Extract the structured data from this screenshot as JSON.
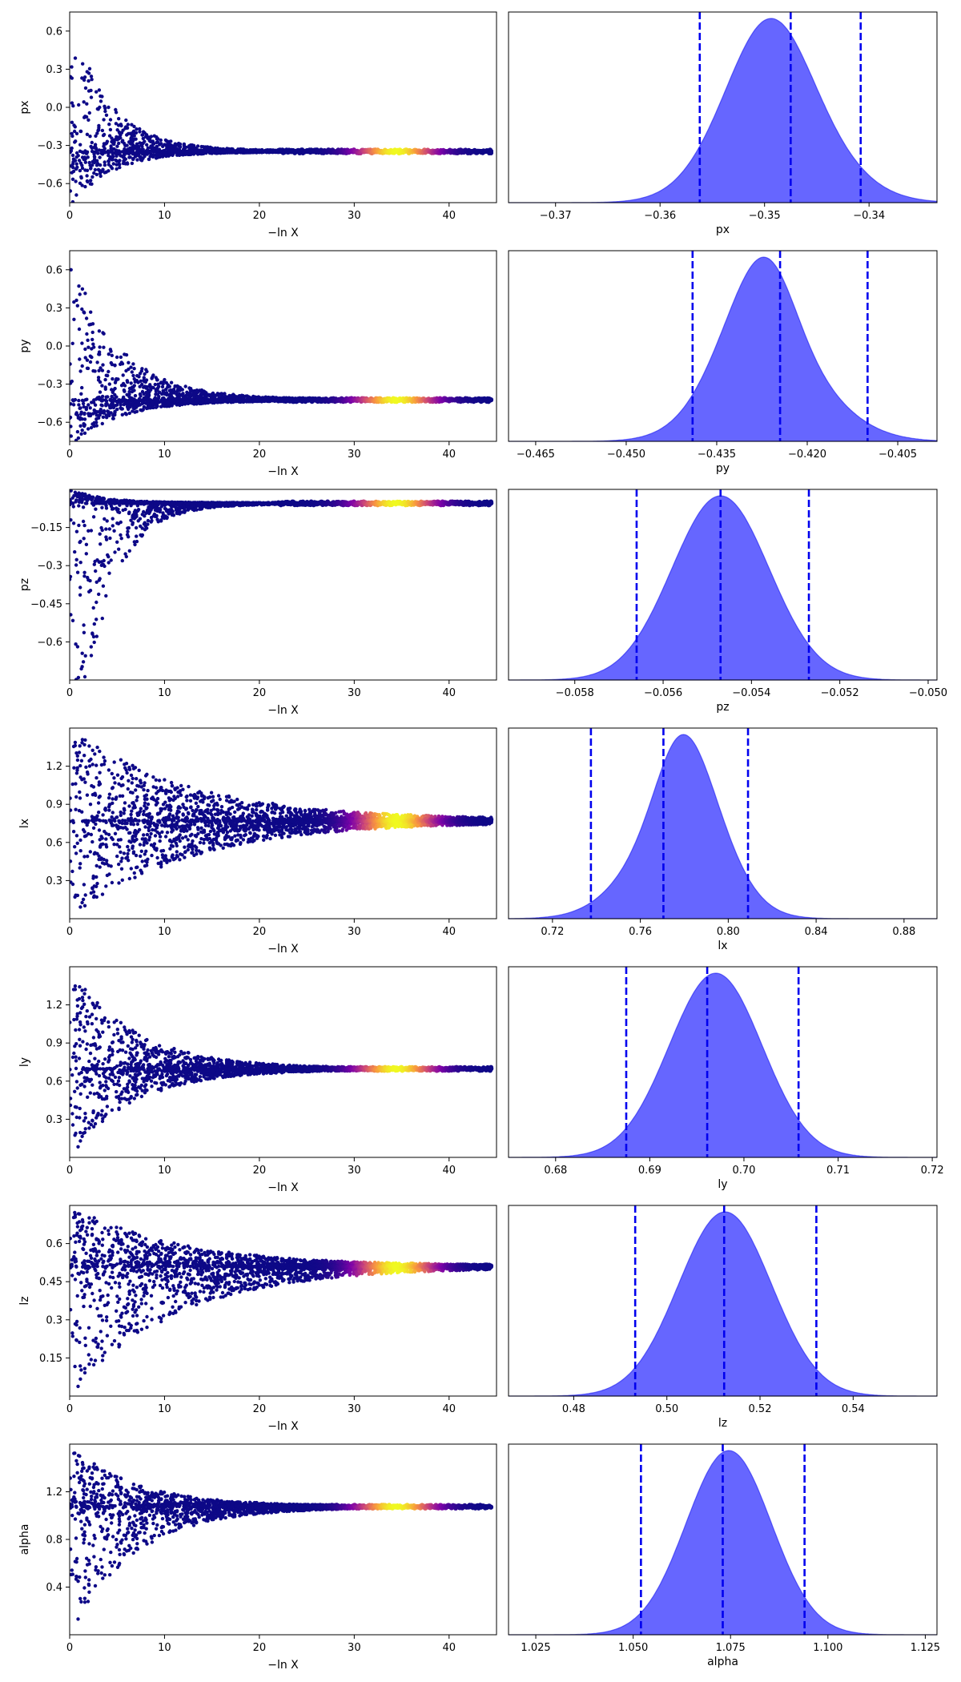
{
  "chart_data": [
    {
      "panel": "trace",
      "type": "scatter",
      "ylabel": "px",
      "xlabel": "−ln X",
      "xlim": [
        0,
        45
      ],
      "xticks": [
        0,
        10,
        20,
        30,
        40
      ],
      "ylim": [
        -0.75,
        0.75
      ],
      "yticks": [
        0.6,
        0.3,
        0.0,
        -0.3,
        -0.6
      ],
      "converged_value": -0.347,
      "band_start": 0.7,
      "band_start_x": 0.5,
      "band_x_end": 14,
      "band_floor": -0.75,
      "band_ceil": 0.75,
      "decay": 0.25,
      "colormap": [
        "#0d0887",
        "#7e03a8",
        "#cc4778",
        "#f89540",
        "#f0f921"
      ]
    },
    {
      "panel": "trace",
      "type": "scatter",
      "ylabel": "py",
      "xlabel": "−ln X",
      "xlim": [
        0,
        45
      ],
      "xticks": [
        0,
        10,
        20,
        30,
        40
      ],
      "ylim": [
        -0.75,
        0.75
      ],
      "yticks": [
        0.6,
        0.3,
        0.0,
        -0.3,
        -0.6
      ],
      "converged_value": -0.425,
      "band_start": 0.75,
      "band_start_x": 0.5,
      "band_x_end": 23,
      "band_floor": -0.75,
      "band_ceil": 0.75,
      "decay": 0.2,
      "colormap": [
        "#0d0887",
        "#7e03a8",
        "#cc4778",
        "#f89540",
        "#f0f921"
      ]
    },
    {
      "panel": "trace",
      "type": "scatter",
      "ylabel": "pz",
      "xlabel": "−ln X",
      "xlim": [
        0,
        45
      ],
      "xticks": [
        0,
        10,
        20,
        30,
        40
      ],
      "ylim": [
        -0.75,
        0.0
      ],
      "yticks": [
        -0.15,
        -0.3,
        -0.45,
        -0.6
      ],
      "converged_value": -0.055,
      "band_start": -0.75,
      "band_start_x": 2,
      "band_x_end": 14,
      "band_floor": -0.75,
      "band_ceil": 0.0,
      "decay": 0.3,
      "colormap": [
        "#0d0887",
        "#7e03a8",
        "#cc4778",
        "#f89540",
        "#f0f921"
      ]
    },
    {
      "panel": "trace",
      "type": "scatter",
      "ylabel": "lx",
      "xlabel": "−ln X",
      "xlim": [
        0,
        45
      ],
      "xticks": [
        0,
        10,
        20,
        30,
        40
      ],
      "ylim": [
        0.0,
        1.5
      ],
      "yticks": [
        1.2,
        0.9,
        0.6,
        0.3
      ],
      "converged_value": 0.77,
      "band_start": 0.0,
      "band_start_x": 0,
      "band_x_end": 28,
      "band_floor": 0.0,
      "band_ceil": 1.5,
      "decay": 0.08,
      "colormap": [
        "#0d0887",
        "#7e03a8",
        "#cc4778",
        "#f89540",
        "#f0f921"
      ]
    },
    {
      "panel": "trace",
      "type": "scatter",
      "ylabel": "ly",
      "xlabel": "−ln X",
      "xlim": [
        0,
        45
      ],
      "xticks": [
        0,
        10,
        20,
        30,
        40
      ],
      "ylim": [
        0.0,
        1.5
      ],
      "yticks": [
        1.2,
        0.9,
        0.6,
        0.3
      ],
      "converged_value": 0.696,
      "band_start": 0.0,
      "band_start_x": 0,
      "band_x_end": 17,
      "band_floor": 0.0,
      "band_ceil": 1.5,
      "decay": 0.15,
      "colormap": [
        "#0d0887",
        "#7e03a8",
        "#cc4778",
        "#f89540",
        "#f0f921"
      ]
    },
    {
      "panel": "trace",
      "type": "scatter",
      "ylabel": "lz",
      "xlabel": "−ln X",
      "xlim": [
        0,
        45
      ],
      "xticks": [
        0,
        10,
        20,
        30,
        40
      ],
      "ylim": [
        0.0,
        0.75
      ],
      "yticks": [
        0.6,
        0.45,
        0.3,
        0.15
      ],
      "converged_value": 0.51,
      "band_start": 0.0,
      "band_start_x": 0,
      "band_x_end": 19,
      "band_floor": 0.0,
      "band_ceil": 0.75,
      "decay": 0.09,
      "colormap": [
        "#0d0887",
        "#7e03a8",
        "#cc4778",
        "#f89540",
        "#f0f921"
      ]
    },
    {
      "panel": "trace",
      "type": "scatter",
      "ylabel": "alpha",
      "xlabel": "−ln X",
      "xlim": [
        0,
        45
      ],
      "xticks": [
        0,
        10,
        20,
        30,
        40
      ],
      "ylim": [
        0.0,
        1.6
      ],
      "yticks": [
        1.2,
        0.8,
        0.4
      ],
      "converged_value": 1.075,
      "band_start": 0.0,
      "band_start_x": 0,
      "band_x_end": 16,
      "band_floor": 0.0,
      "band_ceil": 1.6,
      "decay": 0.15,
      "colormap": [
        "#0d0887",
        "#7e03a8",
        "#cc4778",
        "#f89540",
        "#f0f921"
      ]
    },
    {
      "panel": "posterior",
      "type": "area",
      "xlabel": "px",
      "xlim": [
        -0.3745,
        -0.3335
      ],
      "xticks": [
        -0.37,
        -0.36,
        -0.35,
        -0.34
      ],
      "xtick_labels": [
        "−0.37",
        "−0.36",
        "−0.35",
        "−0.34"
      ],
      "mean": -0.3475,
      "sd": 0.005,
      "skew": -1.0,
      "quantiles": [
        -0.3562,
        -0.3475,
        -0.3408
      ],
      "fill_color": "#6666ff",
      "line_color": "#0000ee"
    },
    {
      "panel": "posterior",
      "type": "area",
      "xlabel": "py",
      "xlim": [
        -0.4695,
        -0.3985
      ],
      "xticks": [
        -0.465,
        -0.45,
        -0.435,
        -0.42,
        -0.405
      ],
      "xtick_labels": [
        "−0.465",
        "−0.450",
        "−0.435",
        "−0.420",
        "−0.405"
      ],
      "mean": -0.4235,
      "sd": 0.0085,
      "skew": -1.6,
      "quantiles": [
        -0.439,
        -0.4245,
        -0.41
      ],
      "fill_color": "#6666ff",
      "line_color": "#0000ee"
    },
    {
      "panel": "posterior",
      "type": "area",
      "xlabel": "pz",
      "xlim": [
        -0.0595,
        -0.0498
      ],
      "xticks": [
        -0.058,
        -0.056,
        -0.054,
        -0.052,
        -0.05
      ],
      "xtick_labels": [
        "−0.058",
        "−0.056",
        "−0.054",
        "−0.052",
        "−0.050"
      ],
      "mean": -0.0547,
      "sd": 0.0011,
      "skew": 0.0,
      "quantiles": [
        -0.0566,
        -0.0547,
        -0.0527
      ],
      "fill_color": "#6666ff",
      "line_color": "#0000ee"
    },
    {
      "panel": "posterior",
      "type": "area",
      "xlabel": "lx",
      "xlim": [
        0.7,
        0.895
      ],
      "xticks": [
        0.72,
        0.76,
        0.8,
        0.84,
        0.88
      ],
      "xtick_labels": [
        "0.72",
        "0.76",
        "0.80",
        "0.84",
        "0.88"
      ],
      "mean": 0.771,
      "sd": 0.02,
      "skew": 1.5,
      "quantiles": [
        0.7375,
        0.7705,
        0.809
      ],
      "fill_color": "#6666ff",
      "line_color": "#0000ee"
    },
    {
      "panel": "posterior",
      "type": "area",
      "xlabel": "ly",
      "xlim": [
        0.675,
        0.7205
      ],
      "xticks": [
        0.68,
        0.69,
        0.7,
        0.71,
        0.72
      ],
      "xtick_labels": [
        "0.68",
        "0.69",
        "0.70",
        "0.71",
        "0.72"
      ],
      "mean": 0.6963,
      "sd": 0.005,
      "skew": 0.3,
      "quantiles": [
        0.6875,
        0.6961,
        0.7058
      ],
      "fill_color": "#6666ff",
      "line_color": "#0000ee"
    },
    {
      "panel": "posterior",
      "type": "area",
      "xlabel": "lz",
      "xlim": [
        0.466,
        0.558
      ],
      "xticks": [
        0.48,
        0.5,
        0.52,
        0.54
      ],
      "xtick_labels": [
        "0.48",
        "0.50",
        "0.52",
        "0.54"
      ],
      "mean": 0.5125,
      "sd": 0.01,
      "skew": 0.0,
      "quantiles": [
        0.4932,
        0.5123,
        0.5321
      ],
      "fill_color": "#6666ff",
      "line_color": "#0000ee"
    },
    {
      "panel": "posterior",
      "type": "area",
      "xlabel": "alpha",
      "xlim": [
        1.018,
        1.128
      ],
      "xticks": [
        1.025,
        1.05,
        1.075,
        1.1,
        1.125
      ],
      "xtick_labels": [
        "1.025",
        "1.050",
        "1.075",
        "1.100",
        "1.125"
      ],
      "mean": 1.0735,
      "sd": 0.011,
      "skew": 0.2,
      "quantiles": [
        1.052,
        1.073,
        1.094
      ],
      "fill_color": "#6666ff",
      "line_color": "#0000ee"
    }
  ]
}
